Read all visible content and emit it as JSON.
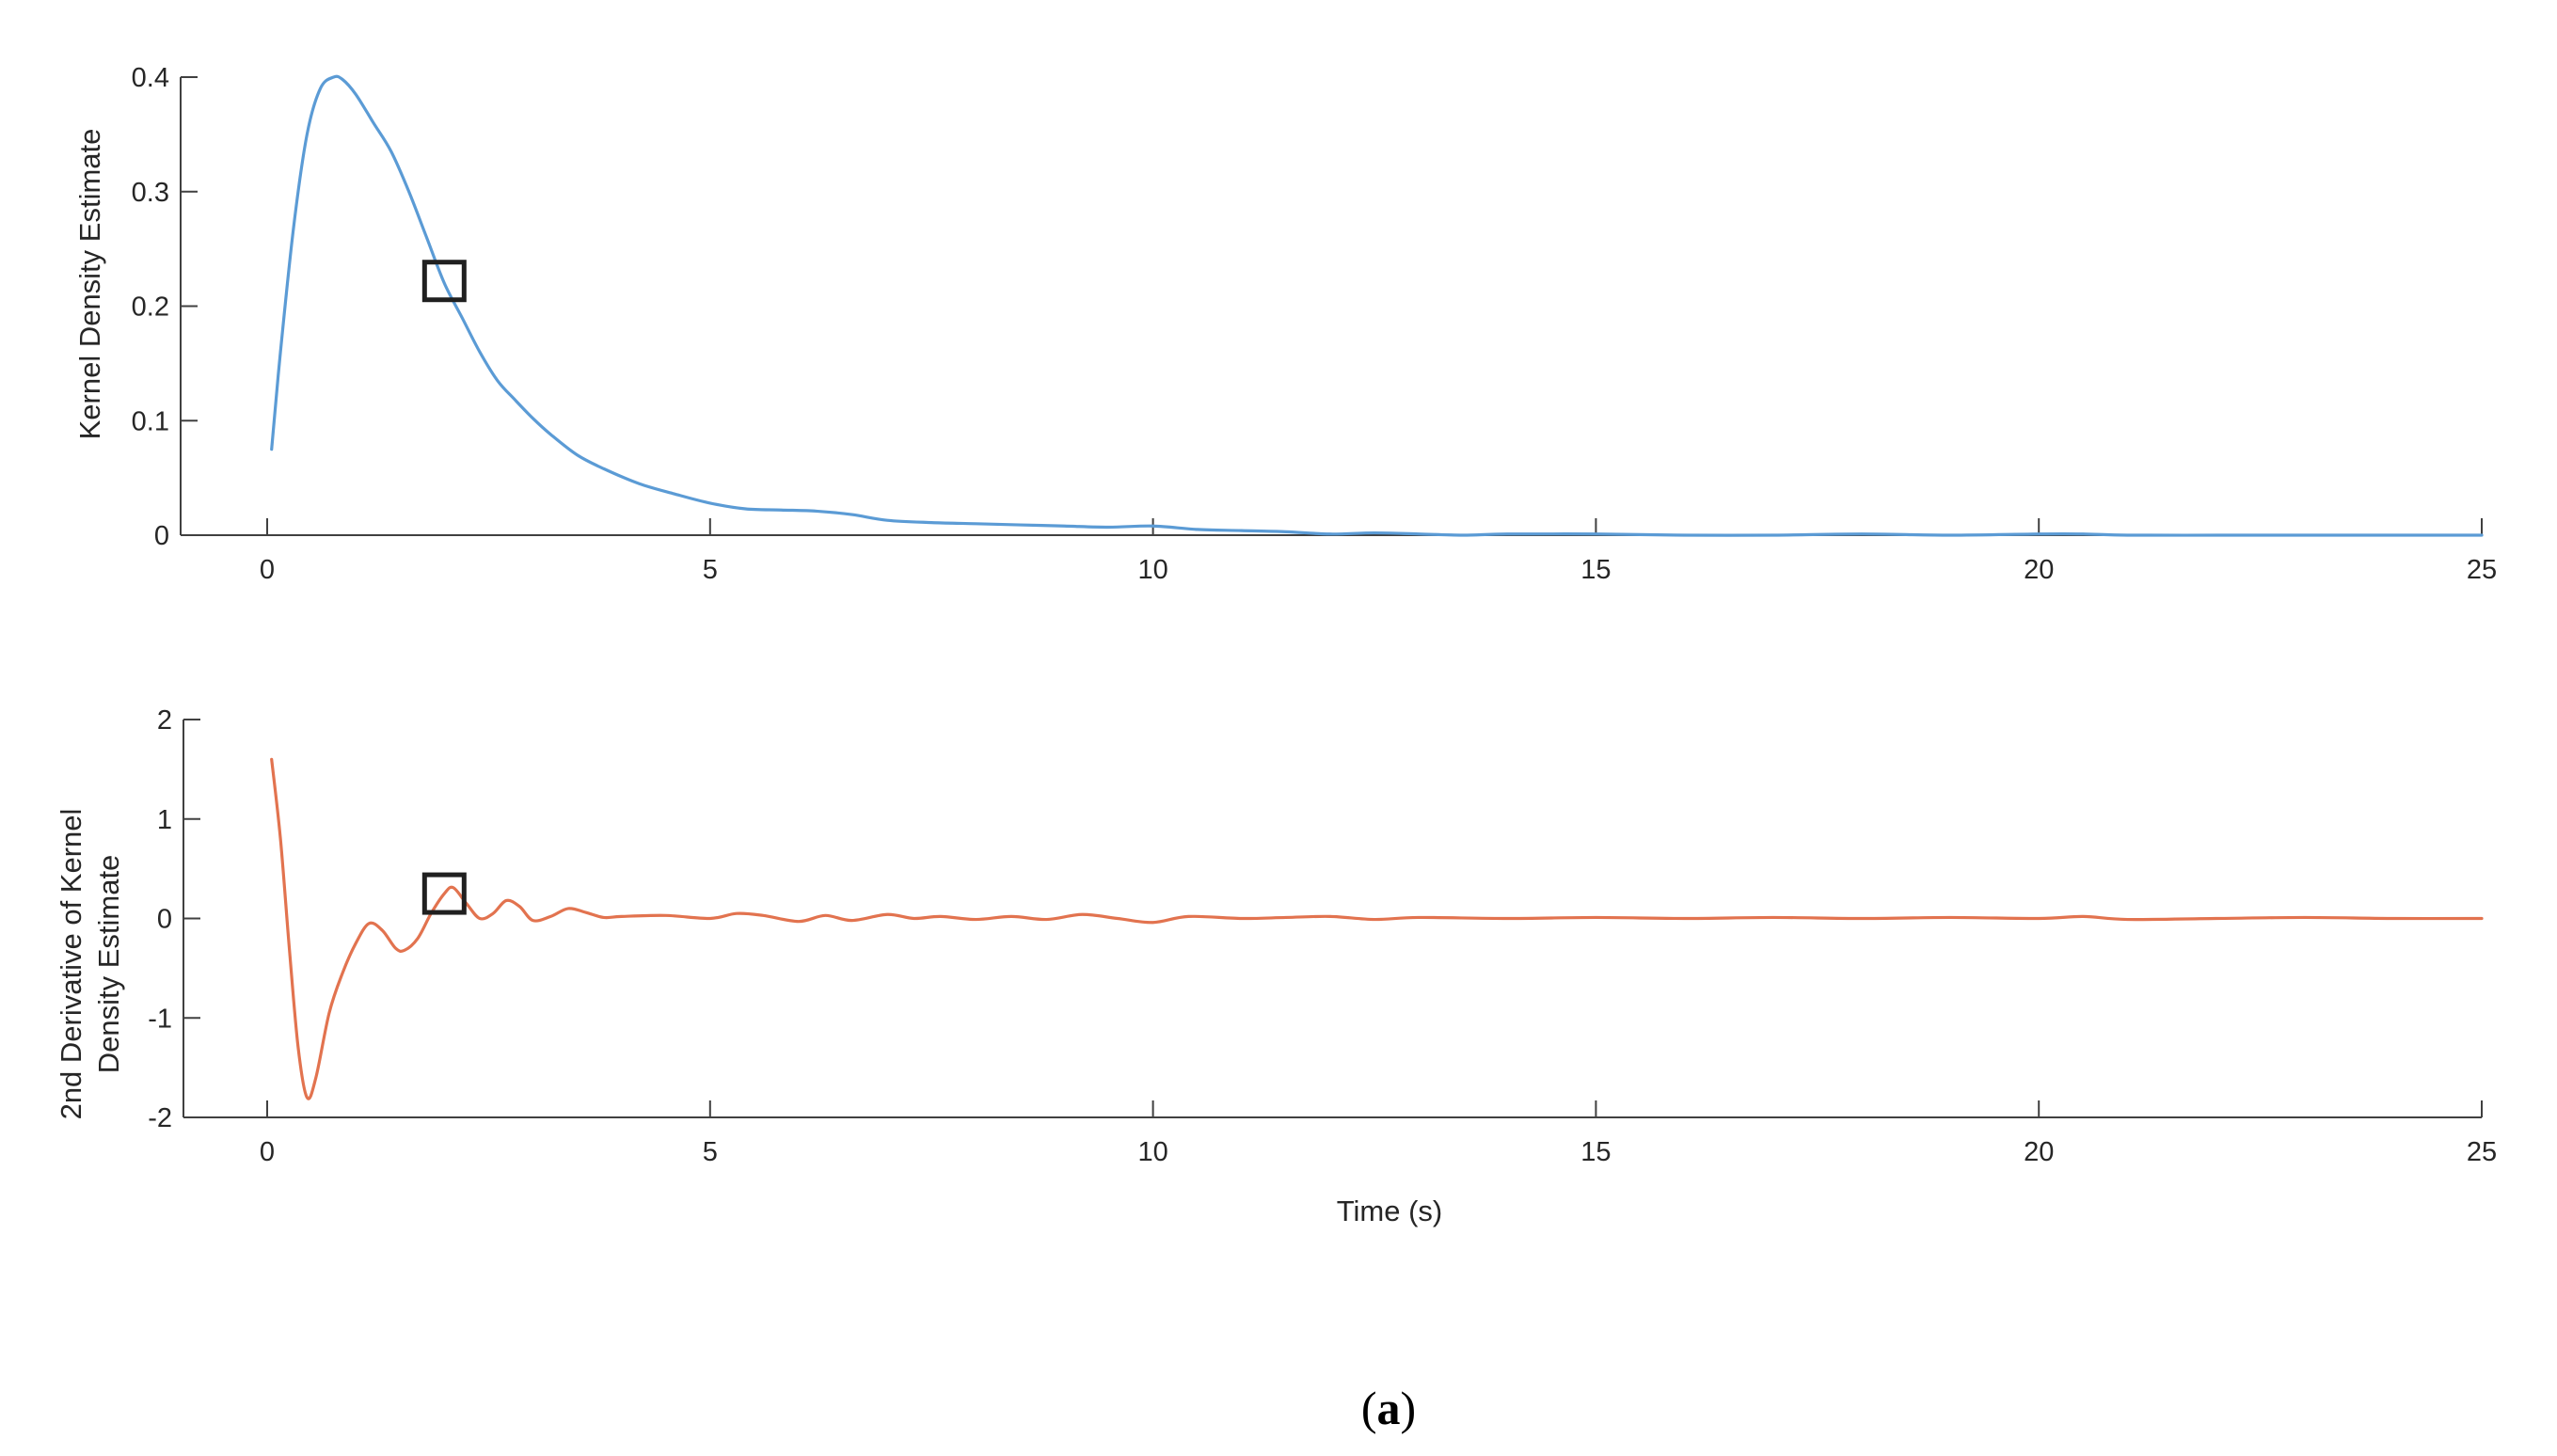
{
  "figure": {
    "caption": {
      "open": "(",
      "letter": "a",
      "close": ")"
    }
  },
  "chart_data": [
    {
      "type": "line",
      "title": "",
      "xlabel": "",
      "ylabel": "Kernel Density Estimate",
      "xlim": [
        0,
        25
      ],
      "ylim": [
        0,
        0.4
      ],
      "xticks": [
        0,
        5,
        10,
        15,
        20,
        25
      ],
      "yticks": [
        0,
        0.1,
        0.2,
        0.3,
        0.4
      ],
      "xtick_labels": [
        "0",
        "5",
        "10",
        "15",
        "20",
        "25"
      ],
      "ytick_labels": [
        "0",
        "0.1",
        "0.2",
        "0.3",
        "0.4"
      ],
      "grid": false,
      "line_color": "#5b9bd5",
      "series": [
        {
          "x": [
            0.05,
            0.15,
            0.3,
            0.45,
            0.6,
            0.75,
            0.85,
            1.0,
            1.2,
            1.4,
            1.6,
            1.8,
            2.0,
            2.2,
            2.4,
            2.6,
            2.8,
            3.0,
            3.2,
            3.5,
            3.8,
            4.2,
            4.6,
            5.0,
            5.4,
            5.8,
            6.2,
            6.6,
            7.0,
            7.5,
            8.0,
            8.5,
            9.0,
            9.5,
            10.0,
            10.5,
            11.0,
            11.5,
            12.0,
            12.5,
            13.0,
            13.5,
            14.0,
            15.0,
            16.0,
            17.0,
            18.0,
            19.0,
            20.0,
            20.5,
            21.0,
            22.0,
            23.0,
            24.0,
            25.0
          ],
          "y": [
            0.075,
            0.16,
            0.27,
            0.35,
            0.39,
            0.4,
            0.398,
            0.385,
            0.36,
            0.335,
            0.3,
            0.26,
            0.22,
            0.19,
            0.16,
            0.135,
            0.118,
            0.102,
            0.088,
            0.07,
            0.058,
            0.045,
            0.036,
            0.028,
            0.023,
            0.022,
            0.021,
            0.018,
            0.013,
            0.011,
            0.01,
            0.009,
            0.008,
            0.007,
            0.008,
            0.005,
            0.004,
            0.003,
            0.001,
            0.002,
            0.001,
            0.0,
            0.001,
            0.001,
            0.0,
            0.0,
            0.001,
            0.0,
            0.001,
            0.001,
            0.0,
            0.0,
            0.0,
            0.0,
            0.0
          ]
        }
      ],
      "marker": {
        "shape": "square",
        "x": 2.0,
        "y": 0.222
      }
    },
    {
      "type": "line",
      "title": "",
      "xlabel": "Time (s)",
      "ylabel": [
        "2nd Derivative of Kernel",
        "Density Estimate"
      ],
      "xlim": [
        0,
        25
      ],
      "ylim": [
        -2,
        2
      ],
      "xticks": [
        0,
        5,
        10,
        15,
        20,
        25
      ],
      "yticks": [
        -2,
        -1,
        0,
        1,
        2
      ],
      "xtick_labels": [
        "0",
        "5",
        "10",
        "15",
        "20",
        "25"
      ],
      "ytick_labels": [
        "-2",
        "-1",
        "0",
        "1",
        "2"
      ],
      "grid": false,
      "line_color": "#e2734f",
      "series": [
        {
          "x": [
            0.05,
            0.15,
            0.25,
            0.35,
            0.45,
            0.55,
            0.7,
            0.85,
            1.0,
            1.15,
            1.3,
            1.45,
            1.55,
            1.7,
            1.85,
            2.0,
            2.1,
            2.25,
            2.4,
            2.55,
            2.7,
            2.85,
            3.0,
            3.2,
            3.4,
            3.6,
            3.8,
            4.0,
            4.5,
            5.0,
            5.3,
            5.6,
            6.0,
            6.3,
            6.6,
            7.0,
            7.3,
            7.6,
            8.0,
            8.4,
            8.8,
            9.2,
            9.6,
            10.0,
            10.4,
            11.0,
            11.5,
            12.0,
            12.5,
            13.0,
            14.0,
            15.0,
            16.0,
            17.0,
            18.0,
            19.0,
            20.0,
            20.5,
            21.0,
            22.0,
            23.0,
            24.0,
            25.0
          ],
          "y": [
            1.6,
            0.8,
            -0.3,
            -1.3,
            -1.8,
            -1.6,
            -0.95,
            -0.55,
            -0.25,
            -0.05,
            -0.12,
            -0.3,
            -0.32,
            -0.2,
            0.05,
            0.25,
            0.31,
            0.15,
            0.0,
            0.05,
            0.18,
            0.12,
            -0.02,
            0.02,
            0.1,
            0.06,
            0.01,
            0.02,
            0.03,
            0.0,
            0.05,
            0.03,
            -0.03,
            0.03,
            -0.02,
            0.04,
            0.0,
            0.02,
            -0.01,
            0.02,
            -0.01,
            0.04,
            0.0,
            -0.04,
            0.02,
            0.0,
            0.01,
            0.02,
            -0.01,
            0.01,
            0.0,
            0.01,
            0.0,
            0.01,
            0.0,
            0.01,
            0.0,
            0.02,
            -0.01,
            0.0,
            0.01,
            0.0,
            0.0
          ]
        }
      ],
      "marker": {
        "shape": "square",
        "x": 2.0,
        "y": 0.25
      }
    }
  ]
}
